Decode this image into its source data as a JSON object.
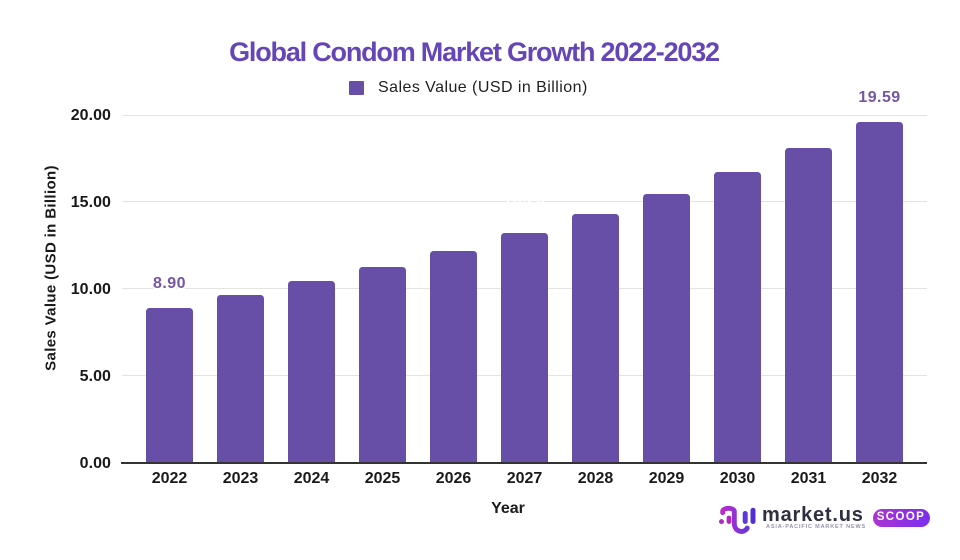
{
  "chart_data": {
    "type": "bar",
    "title": "Global Condom Market Growth 2022-2032",
    "legend_label": "Sales Value (USD in Billion)",
    "xlabel": "Year",
    "ylabel": "Sales Value (USD in Billion)",
    "categories": [
      "2022",
      "2023",
      "2024",
      "2025",
      "2026",
      "2027",
      "2028",
      "2029",
      "2030",
      "2031",
      "2032"
    ],
    "values": [
      8.9,
      9.63,
      10.42,
      11.27,
      12.2,
      13.2,
      14.28,
      15.45,
      16.72,
      18.09,
      19.59
    ],
    "yticks": [
      {
        "value": 0,
        "label": "0.00"
      },
      {
        "value": 5,
        "label": "5.00"
      },
      {
        "value": 10,
        "label": "10.00"
      },
      {
        "value": 15,
        "label": "15.00"
      },
      {
        "value": 20,
        "label": "20.00"
      }
    ],
    "ylim": [
      0,
      20
    ],
    "grid": true,
    "legend_position": "top",
    "annotations": [
      {
        "index": 0,
        "text": "8.90",
        "visible": true
      },
      {
        "index": 5,
        "text": "13.20",
        "visible": false
      },
      {
        "index": 10,
        "text": "19.59",
        "visible": true
      }
    ],
    "colors": {
      "bar": "#674ea7",
      "title": "#6546b7",
      "annotation": "#7457a3",
      "gridline": "#e3e3e3",
      "axis_line": "#333333"
    }
  },
  "branding": {
    "logo_text": "market.us",
    "tagline": "ASIA-PACIFIC MARKET NEWS",
    "badge_label": "SCOOP"
  }
}
